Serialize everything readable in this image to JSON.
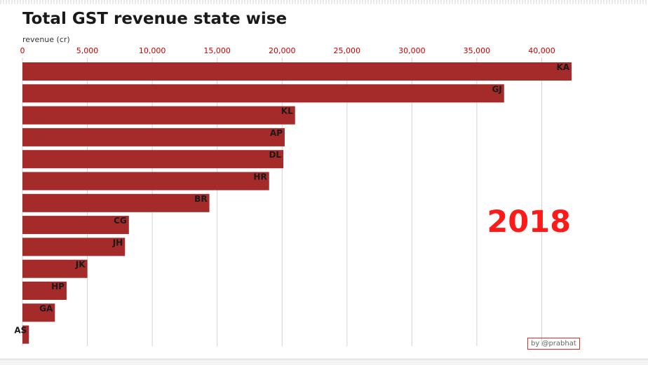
{
  "title": "Total GST revenue state wise",
  "credit": "by @prabhat",
  "colors": {
    "bar": "#a52a2a",
    "tick_text": "#cc0000",
    "year": "#ff1a1a",
    "grid": "#d3d3d3"
  },
  "chart_data": {
    "type": "bar",
    "orientation": "horizontal",
    "title": "Total GST revenue state wise",
    "xlabel": "revenue (cr)",
    "ylabel": "",
    "annotation": "2018",
    "xlim": [
      0,
      43000
    ],
    "xticks": [
      0,
      5000,
      10000,
      15000,
      20000,
      25000,
      30000,
      35000,
      40000
    ],
    "xtick_labels": [
      "0",
      "5,000",
      "10,000",
      "15,000",
      "20,000",
      "25,000",
      "30,000",
      "35,000",
      "40,000"
    ],
    "grid": true,
    "categories": [
      "KA",
      "GJ",
      "KL",
      "AP",
      "DL",
      "HR",
      "BR",
      "CG",
      "JH",
      "JK",
      "HP",
      "GA",
      "AS"
    ],
    "values": [
      42300,
      37100,
      21000,
      20200,
      20100,
      19000,
      14400,
      8200,
      7900,
      5000,
      3400,
      2500,
      500
    ]
  }
}
